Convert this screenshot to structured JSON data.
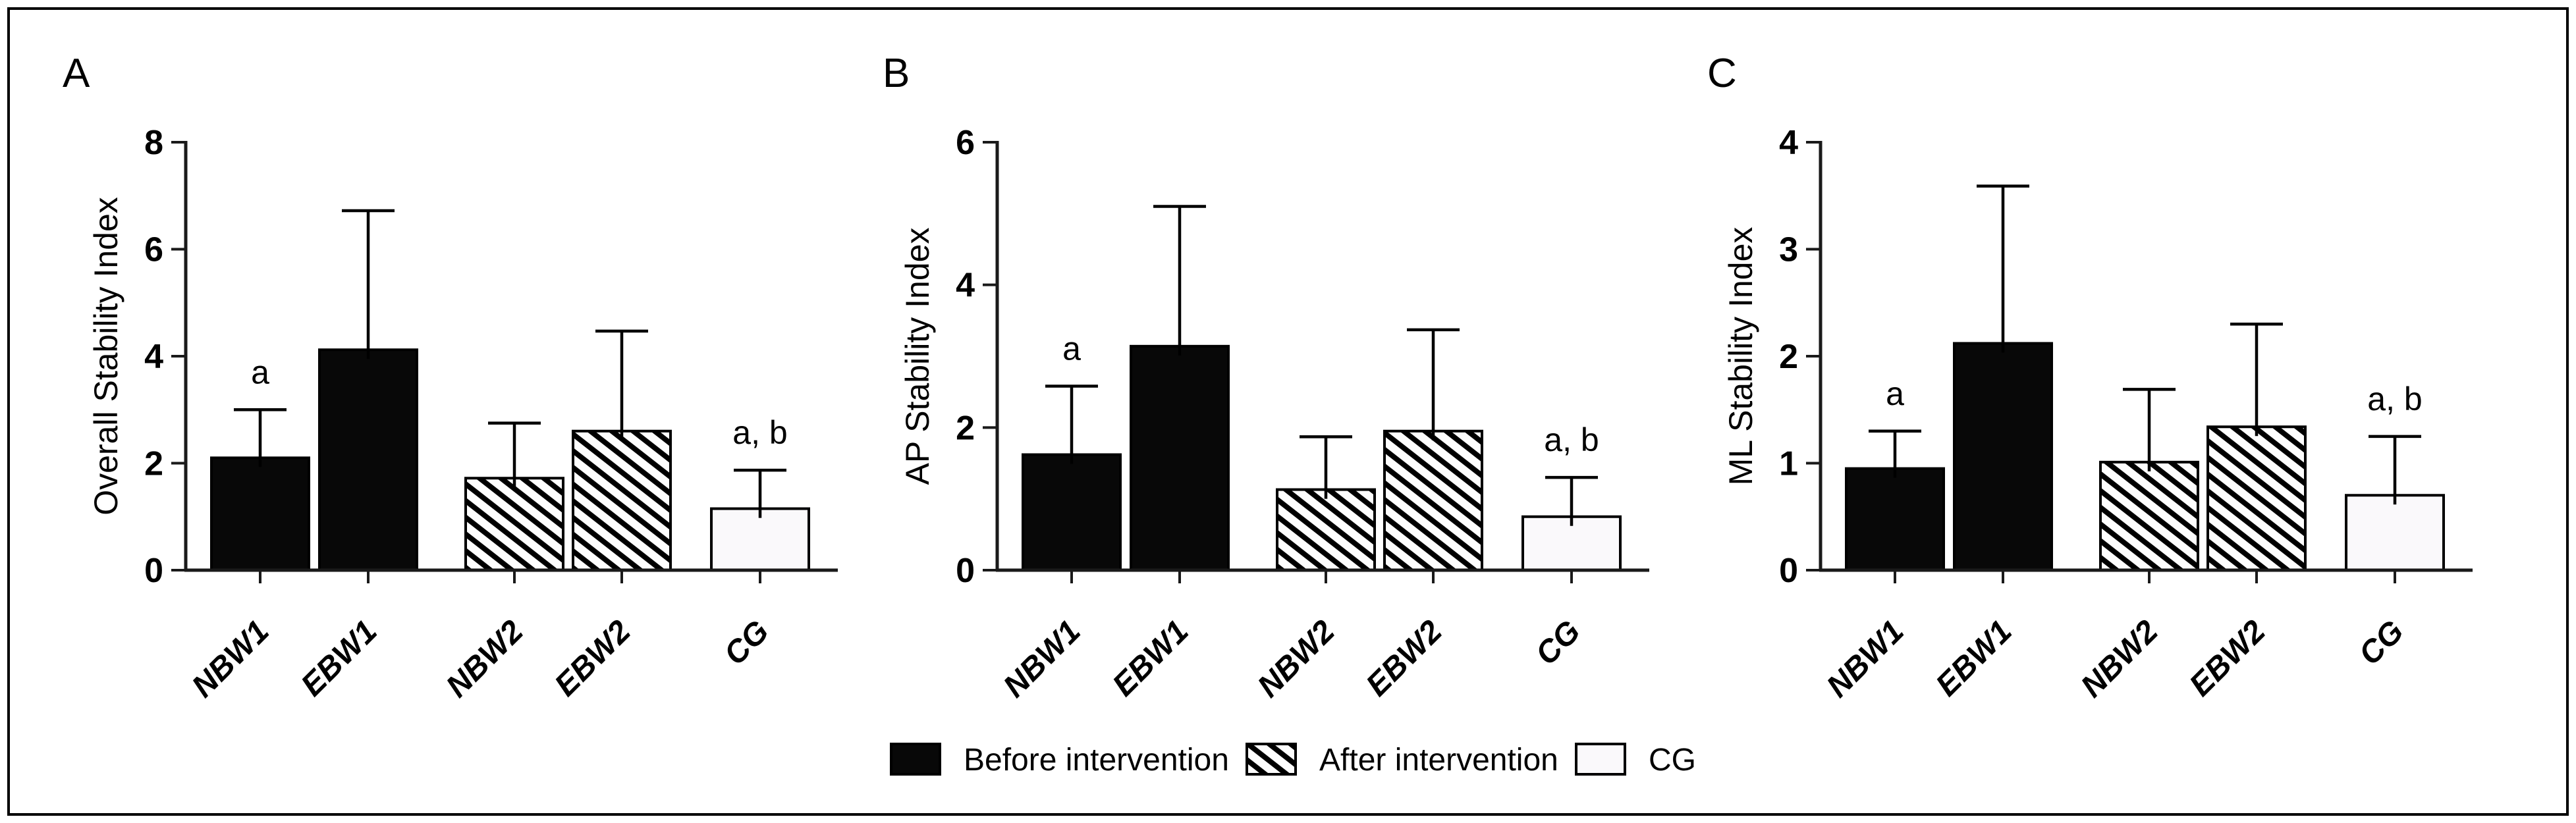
{
  "figure": {
    "background": "#ffffff",
    "border_color": "#000000",
    "axis_color": "#1a1a1a",
    "text_color": "#000000",
    "bar_black": "#080808",
    "bar_white": "#faf9fb",
    "hatch_stripe": "#000000",
    "hatch_bg": "#fdfdfd"
  },
  "legend": {
    "items": [
      {
        "label": "Before intervention",
        "swatch": "black"
      },
      {
        "label": "After intervention",
        "swatch": "hatch"
      },
      {
        "label": "CG",
        "swatch": "white"
      }
    ]
  },
  "chart_data": [
    {
      "type": "bar",
      "panel_label": "A",
      "title": "",
      "xlabel": "",
      "ylabel": "Overall Stability Index",
      "ylim": [
        0,
        8
      ],
      "yticks": [
        0,
        2,
        4,
        6,
        8
      ],
      "grid": false,
      "legend_position": "shared-bottom",
      "categories": [
        "NBW1",
        "EBW1",
        "NBW2",
        "EBW2",
        "CG"
      ],
      "values": [
        2.1,
        4.12,
        1.72,
        2.6,
        1.15
      ],
      "errors_plus": [
        0.9,
        2.6,
        1.03,
        1.87,
        0.72
      ],
      "bar_styles": [
        "black",
        "black",
        "hatch",
        "hatch",
        "white"
      ],
      "series_of_bar": [
        "Before intervention",
        "Before intervention",
        "After intervention",
        "After intervention",
        "CG"
      ],
      "annotations": [
        {
          "index": 0,
          "category": "NBW1",
          "text": "a"
        },
        {
          "index": 4,
          "category": "CG",
          "text": "a, b"
        }
      ]
    },
    {
      "type": "bar",
      "panel_label": "B",
      "title": "",
      "xlabel": "",
      "ylabel": "AP Stability Index",
      "ylim": [
        0,
        6
      ],
      "yticks": [
        0,
        2,
        4,
        6
      ],
      "grid": false,
      "legend_position": "shared-bottom",
      "categories": [
        "NBW1",
        "EBW1",
        "NBW2",
        "EBW2",
        "CG"
      ],
      "values": [
        1.62,
        3.14,
        1.13,
        1.95,
        0.75
      ],
      "errors_plus": [
        0.96,
        1.96,
        0.74,
        1.42,
        0.55
      ],
      "bar_styles": [
        "black",
        "black",
        "hatch",
        "hatch",
        "white"
      ],
      "series_of_bar": [
        "Before intervention",
        "Before intervention",
        "After intervention",
        "After intervention",
        "CG"
      ],
      "annotations": [
        {
          "index": 0,
          "category": "NBW1",
          "text": "a"
        },
        {
          "index": 4,
          "category": "CG",
          "text": "a, b"
        }
      ]
    },
    {
      "type": "bar",
      "panel_label": "C",
      "title": "",
      "xlabel": "",
      "ylabel": "ML Stability Index",
      "ylim": [
        0,
        4
      ],
      "yticks": [
        0,
        1,
        2,
        3,
        4
      ],
      "grid": false,
      "legend_position": "shared-bottom",
      "categories": [
        "NBW1",
        "EBW1",
        "NBW2",
        "EBW2",
        "CG"
      ],
      "values": [
        0.95,
        2.12,
        1.01,
        1.34,
        0.7
      ],
      "errors_plus": [
        0.35,
        1.47,
        0.68,
        0.96,
        0.55
      ],
      "bar_styles": [
        "black",
        "black",
        "hatch",
        "hatch",
        "white"
      ],
      "series_of_bar": [
        "Before intervention",
        "Before intervention",
        "After intervention",
        "After intervention",
        "CG"
      ],
      "annotations": [
        {
          "index": 0,
          "category": "NBW1",
          "text": "a"
        },
        {
          "index": 4,
          "category": "CG",
          "text": "a, b"
        }
      ]
    }
  ]
}
